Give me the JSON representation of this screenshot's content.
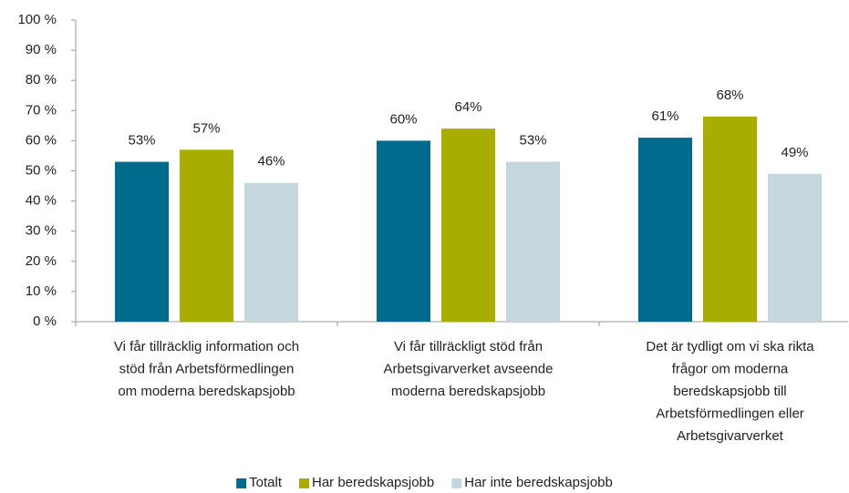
{
  "chart_data": {
    "type": "bar",
    "categories": [
      [
        "Vi får tillräcklig information och",
        "stöd från Arbetsförmedlingen",
        "om moderna beredskapsjobb"
      ],
      [
        "Vi får tillräckligt stöd från",
        "Arbetsgivarverket avseende",
        "moderna beredskapsjobb"
      ],
      [
        "Det är tydligt om vi ska rikta",
        "frågor om moderna",
        "beredskapsjobb till",
        "Arbetsförmedlingen eller",
        "Arbetsgivarverket"
      ]
    ],
    "series": [
      {
        "name": "Totalt",
        "color": "#006b8c",
        "values": [
          53,
          60,
          61
        ],
        "value_labels": [
          "53%",
          "60%",
          "61%"
        ]
      },
      {
        "name": "Har beredskapsjobb",
        "color": "#a8ad00",
        "values": [
          57,
          64,
          68
        ],
        "value_labels": [
          "57%",
          "64%",
          "68%"
        ]
      },
      {
        "name": "Har inte beredskapsjobb",
        "color": "#c4d7de",
        "values": [
          46,
          53,
          49
        ],
        "value_labels": [
          "46%",
          "53%",
          "49%"
        ]
      }
    ],
    "ylim": [
      0,
      100
    ],
    "yticks": [
      {
        "value": 0,
        "label": "0 %"
      },
      {
        "value": 10,
        "label": "10 %"
      },
      {
        "value": 20,
        "label": "20 %"
      },
      {
        "value": 30,
        "label": "30 %"
      },
      {
        "value": 40,
        "label": "40 %"
      },
      {
        "value": 50,
        "label": "50 %"
      },
      {
        "value": 60,
        "label": "60 %"
      },
      {
        "value": 70,
        "label": "70 %"
      },
      {
        "value": 80,
        "label": "80 %"
      },
      {
        "value": 90,
        "label": "90 %"
      },
      {
        "value": 100,
        "label": "100 %"
      }
    ],
    "legend": "bottom"
  }
}
